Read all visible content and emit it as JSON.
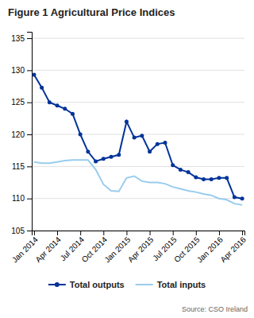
{
  "chart_data": {
    "type": "line",
    "title": "Figure 1 Agricultural Price Indices",
    "source": "Source: CSO Ireland",
    "categories": [
      "Jan 2014",
      null,
      null,
      "Apr 2014",
      null,
      null,
      "Jul 2014",
      null,
      null,
      "Oct 2014",
      null,
      null,
      "Jan 2015",
      null,
      null,
      "Apr 2015",
      null,
      null,
      "Jul 2015",
      null,
      null,
      "Oct 2015",
      null,
      null,
      "Jan 2016",
      null,
      null,
      "Apr 2016"
    ],
    "series": [
      {
        "name": "Total outputs",
        "color": "#003399",
        "marker": "circle",
        "values": [
          129.3,
          127.3,
          125.0,
          124.5,
          124.0,
          123.2,
          120.0,
          117.3,
          115.8,
          116.2,
          116.5,
          116.8,
          122.0,
          119.5,
          119.8,
          117.3,
          118.5,
          118.7,
          115.2,
          114.5,
          114.1,
          113.3,
          113.0,
          113.0,
          113.2,
          113.2,
          110.2,
          110.0
        ]
      },
      {
        "name": "Total inputs",
        "color": "#99ccee",
        "values": [
          115.7,
          115.5,
          115.5,
          115.7,
          115.9,
          116.0,
          116.0,
          116.0,
          114.5,
          112.2,
          111.2,
          111.1,
          113.2,
          113.5,
          112.7,
          112.5,
          112.5,
          112.3,
          111.8,
          111.5,
          111.2,
          111.0,
          110.7,
          110.5,
          110.0,
          109.8,
          109.2,
          109.0
        ]
      }
    ],
    "ylim": [
      105,
      136
    ],
    "yticks": [
      105,
      110,
      115,
      120,
      125,
      130,
      135
    ],
    "grid": true,
    "legend": "bottom"
  }
}
